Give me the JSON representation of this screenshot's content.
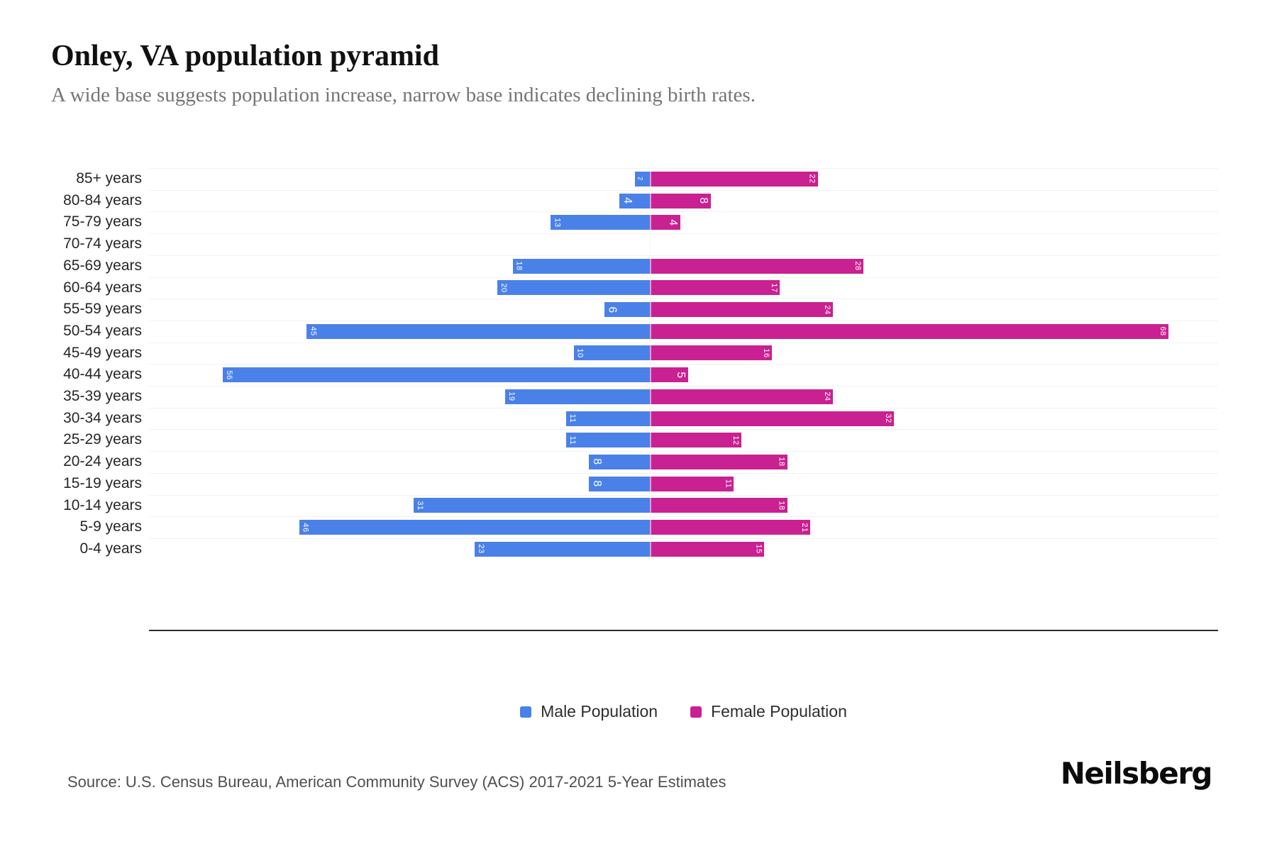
{
  "header": {
    "title": "Onley, VA population pyramid",
    "subtitle": "A wide base suggests population increase, narrow base indicates declining birth rates."
  },
  "chart_data": {
    "type": "bar",
    "variant": "population-pyramid",
    "orientation": "horizontal, male bars grow left, female bars grow right from center zero line",
    "categories": [
      "85+ years",
      "80-84 years",
      "75-79 years",
      "70-74 years",
      "65-69 years",
      "60-64 years",
      "55-59 years",
      "50-54 years",
      "45-49 years",
      "40-44 years",
      "35-39 years",
      "30-34 years",
      "25-29 years",
      "20-24 years",
      "15-19 years",
      "10-14 years",
      "5-9 years",
      "0-4 years"
    ],
    "series": [
      {
        "name": "Male Population",
        "color": "#4A81E9",
        "values": [
          2,
          4,
          13,
          0,
          18,
          20,
          6,
          45,
          10,
          56,
          19,
          11,
          11,
          8,
          8,
          31,
          46,
          23
        ]
      },
      {
        "name": "Female Population",
        "color": "#C92191",
        "values": [
          22,
          8,
          4,
          0,
          28,
          17,
          24,
          68,
          16,
          5,
          24,
          32,
          12,
          18,
          11,
          18,
          21,
          15
        ]
      }
    ],
    "value_labels": "white, rotated 90deg, placed at outer end inside each bar; zero values show no bar",
    "axis": {
      "male_side_max": 66,
      "female_side_max": 74,
      "gridlines": "faint horizontal lines at row boundaries, faint vertical zero line"
    },
    "legend_position": "bottom-center"
  },
  "legend": {
    "items": [
      {
        "label": "Male Population",
        "color": "#4A81E9"
      },
      {
        "label": "Female Population",
        "color": "#C92191"
      }
    ]
  },
  "footer": {
    "source": "Source: U.S. Census Bureau, American Community Survey (ACS) 2017-2021 5-Year Estimates",
    "brand": "Neilsberg"
  }
}
